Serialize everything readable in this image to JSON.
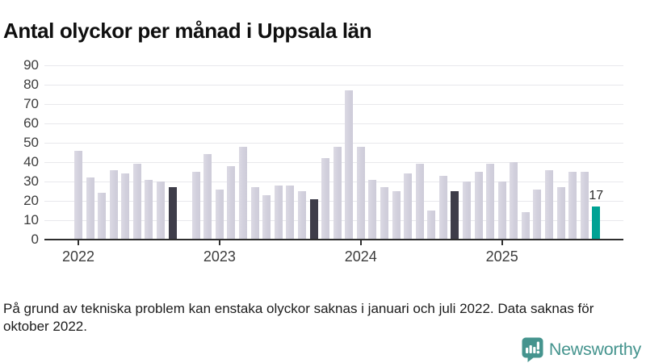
{
  "title": "Antal olyckor per månad i Uppsala län",
  "footnote_lines": [
    "På grund av tekniska problem kan enstaka olyckor saknas i januari och juli 2022. Data saknas för",
    "oktober 2022."
  ],
  "branding": {
    "name": "Newsworthy",
    "icon": "newsworthy-speech-bubble-barchart-icon",
    "color": "#45948e"
  },
  "colors": {
    "bar_normal": "#d3d1dc",
    "bar_dark": "#3e3d49",
    "bar_accent": "#00a294",
    "gridline": "#e8e8ec",
    "axis_line": "#2e2e2e",
    "text": "#3c3c3c"
  },
  "chart_data": {
    "type": "bar",
    "title": "Antal olyckor per månad i Uppsala län",
    "xlabel": "",
    "ylabel": "",
    "ylim": [
      0,
      90
    ],
    "yticks": [
      0,
      10,
      20,
      30,
      40,
      50,
      60,
      70,
      80,
      90
    ],
    "grid": "horizontal",
    "legend": "none",
    "year_labels": [
      "2022",
      "2023",
      "2024",
      "2025"
    ],
    "note": "value null = missing data (oktober 2022); role dark = september previous years; role accent = latest month",
    "annotation": {
      "text": "17",
      "month": "2025-09"
    },
    "months": [
      {
        "month": "2022-01",
        "value": 46,
        "role": "normal"
      },
      {
        "month": "2022-02",
        "value": 32,
        "role": "normal"
      },
      {
        "month": "2022-03",
        "value": 24,
        "role": "normal"
      },
      {
        "month": "2022-04",
        "value": 36,
        "role": "normal"
      },
      {
        "month": "2022-05",
        "value": 34,
        "role": "normal"
      },
      {
        "month": "2022-06",
        "value": 39,
        "role": "normal"
      },
      {
        "month": "2022-07",
        "value": 31,
        "role": "normal"
      },
      {
        "month": "2022-08",
        "value": 30,
        "role": "normal"
      },
      {
        "month": "2022-09",
        "value": 27,
        "role": "dark"
      },
      {
        "month": "2022-10",
        "value": null,
        "role": "missing"
      },
      {
        "month": "2022-11",
        "value": 35,
        "role": "normal"
      },
      {
        "month": "2022-12",
        "value": 44,
        "role": "normal"
      },
      {
        "month": "2023-01",
        "value": 26,
        "role": "normal"
      },
      {
        "month": "2023-02",
        "value": 38,
        "role": "normal"
      },
      {
        "month": "2023-03",
        "value": 48,
        "role": "normal"
      },
      {
        "month": "2023-04",
        "value": 27,
        "role": "normal"
      },
      {
        "month": "2023-05",
        "value": 23,
        "role": "normal"
      },
      {
        "month": "2023-06",
        "value": 28,
        "role": "normal"
      },
      {
        "month": "2023-07",
        "value": 28,
        "role": "normal"
      },
      {
        "month": "2023-08",
        "value": 25,
        "role": "normal"
      },
      {
        "month": "2023-09",
        "value": 21,
        "role": "dark"
      },
      {
        "month": "2023-10",
        "value": 42,
        "role": "normal"
      },
      {
        "month": "2023-11",
        "value": 48,
        "role": "normal"
      },
      {
        "month": "2023-12",
        "value": 77,
        "role": "normal"
      },
      {
        "month": "2024-01",
        "value": 48,
        "role": "normal"
      },
      {
        "month": "2024-02",
        "value": 31,
        "role": "normal"
      },
      {
        "month": "2024-03",
        "value": 27,
        "role": "normal"
      },
      {
        "month": "2024-04",
        "value": 25,
        "role": "normal"
      },
      {
        "month": "2024-05",
        "value": 34,
        "role": "normal"
      },
      {
        "month": "2024-06",
        "value": 39,
        "role": "normal"
      },
      {
        "month": "2024-07",
        "value": 15,
        "role": "normal"
      },
      {
        "month": "2024-08",
        "value": 33,
        "role": "normal"
      },
      {
        "month": "2024-09",
        "value": 25,
        "role": "dark"
      },
      {
        "month": "2024-10",
        "value": 30,
        "role": "normal"
      },
      {
        "month": "2024-11",
        "value": 35,
        "role": "normal"
      },
      {
        "month": "2024-12",
        "value": 39,
        "role": "normal"
      },
      {
        "month": "2025-01",
        "value": 30,
        "role": "normal"
      },
      {
        "month": "2025-02",
        "value": 40,
        "role": "normal"
      },
      {
        "month": "2025-03",
        "value": 14,
        "role": "normal"
      },
      {
        "month": "2025-04",
        "value": 26,
        "role": "normal"
      },
      {
        "month": "2025-05",
        "value": 36,
        "role": "normal"
      },
      {
        "month": "2025-06",
        "value": 27,
        "role": "normal"
      },
      {
        "month": "2025-07",
        "value": 35,
        "role": "normal"
      },
      {
        "month": "2025-08",
        "value": 35,
        "role": "normal"
      },
      {
        "month": "2025-09",
        "value": 17,
        "role": "accent"
      }
    ]
  }
}
